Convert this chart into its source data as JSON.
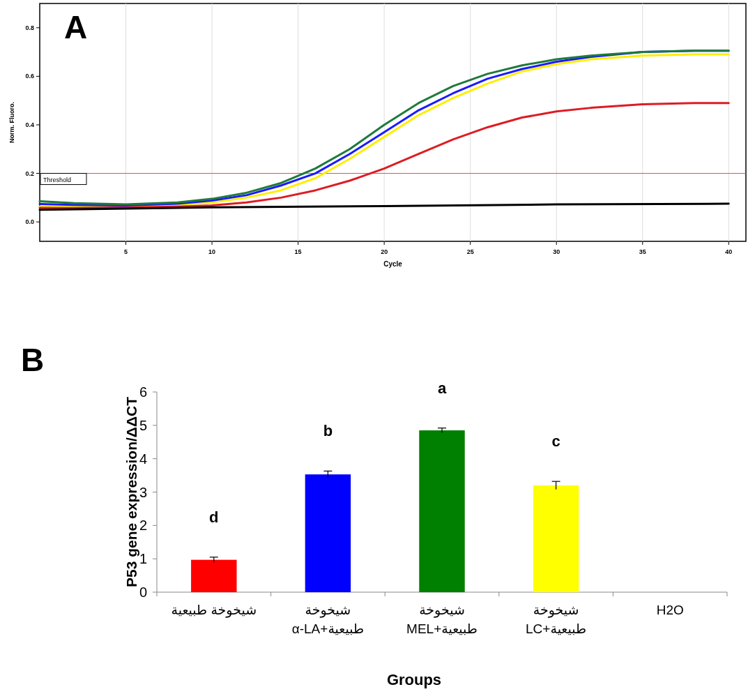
{
  "chart_data": [
    {
      "type": "line",
      "title": "A",
      "xlabel": "Cycle",
      "ylabel": "Norm. Fluoro.",
      "xlim": [
        0,
        41
      ],
      "xticks": [
        5,
        10,
        15,
        20,
        25,
        30,
        35,
        40
      ],
      "ylim": [
        -0.08,
        0.9
      ],
      "yticks": [
        {
          "value": 0,
          "label": "0.0"
        },
        0.2,
        0.4,
        0.6,
        0.8
      ],
      "grid": "x",
      "line_style": "solid",
      "ref_lines": [
        {
          "axis": "y",
          "value": 0.2,
          "label": "Threshold",
          "color": "#ff4040"
        }
      ],
      "series": [
        {
          "color": "#ffee00",
          "x": [
            0,
            2,
            5,
            8,
            10,
            12,
            14,
            16,
            18,
            20,
            22,
            24,
            26,
            28,
            30,
            32,
            35,
            38,
            40
          ],
          "values": [
            0.063,
            0.062,
            0.065,
            0.07,
            0.08,
            0.1,
            0.13,
            0.18,
            0.26,
            0.35,
            0.44,
            0.51,
            0.57,
            0.62,
            0.65,
            0.67,
            0.685,
            0.69,
            0.69
          ]
        },
        {
          "color": "#dd1c24",
          "x": [
            0,
            2,
            5,
            8,
            10,
            12,
            14,
            16,
            18,
            20,
            22,
            24,
            26,
            28,
            30,
            32,
            35,
            38,
            40
          ],
          "values": [
            0.058,
            0.057,
            0.06,
            0.063,
            0.068,
            0.08,
            0.1,
            0.13,
            0.17,
            0.22,
            0.28,
            0.34,
            0.39,
            0.43,
            0.455,
            0.47,
            0.485,
            0.49,
            0.49
          ]
        },
        {
          "color": "#1a1aff",
          "x": [
            0,
            2,
            5,
            8,
            10,
            12,
            14,
            16,
            18,
            20,
            22,
            24,
            26,
            28,
            30,
            32,
            35,
            38,
            40
          ],
          "values": [
            0.074,
            0.07,
            0.068,
            0.075,
            0.088,
            0.11,
            0.15,
            0.2,
            0.28,
            0.37,
            0.46,
            0.53,
            0.59,
            0.63,
            0.66,
            0.68,
            0.7,
            0.705,
            0.705
          ]
        },
        {
          "color": "#1f7a3a",
          "x": [
            0,
            2,
            5,
            8,
            10,
            12,
            14,
            16,
            18,
            20,
            22,
            24,
            26,
            28,
            30,
            32,
            35,
            38,
            40
          ],
          "values": [
            0.085,
            0.077,
            0.072,
            0.08,
            0.095,
            0.12,
            0.16,
            0.22,
            0.3,
            0.4,
            0.49,
            0.56,
            0.61,
            0.645,
            0.67,
            0.685,
            0.7,
            0.705,
            0.705
          ]
        },
        {
          "color": "#000000",
          "x": [
            0,
            10,
            20,
            30,
            40
          ],
          "values": [
            0.05,
            0.06,
            0.065,
            0.072,
            0.075
          ]
        }
      ]
    },
    {
      "type": "bar",
      "title": "B",
      "xlabel": "Groups",
      "ylabel": "P53 gene expression/ΔΔCT",
      "ylim": [
        0,
        6
      ],
      "yticks": [
        0,
        1,
        2,
        3,
        4,
        5,
        6
      ],
      "grid": false,
      "categories": [
        "شيخوخة طبيعية",
        "شيخوخة\nطبيعية+α-LA",
        "شيخوخة\nطبيعية+MEL",
        "شيخوخة\nطبيعية+LC",
        "H2O"
      ],
      "values": [
        0.97,
        3.53,
        4.85,
        3.2,
        null
      ],
      "errors": [
        0.08,
        0.1,
        0.07,
        0.12,
        null
      ],
      "colors": [
        "#ff0000",
        "#0000ff",
        "#008000",
        "#ffff00",
        null
      ],
      "annotations": [
        "d",
        "b",
        "a",
        "c"
      ]
    }
  ]
}
